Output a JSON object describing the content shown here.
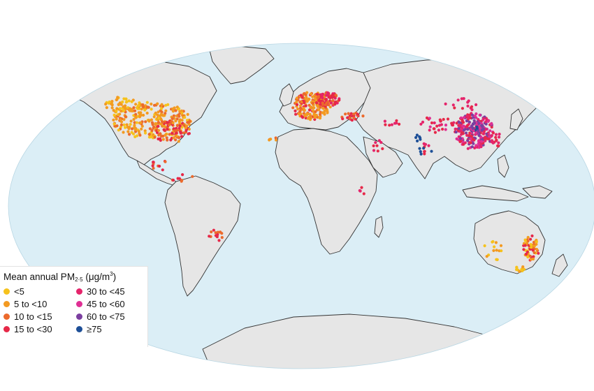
{
  "legend": {
    "title_main": "Mean annual PM",
    "title_sub": "2·5",
    "title_unit_open": " (μg/m",
    "title_unit_sup": "3",
    "title_unit_close": ")",
    "items": [
      {
        "label": "<5",
        "color": "#f6c21c"
      },
      {
        "label": "30 to <45",
        "color": "#e5246b"
      },
      {
        "label": "5 to <10",
        "color": "#f39a21"
      },
      {
        "label": "45 to <60",
        "color": "#df2f94"
      },
      {
        "label": "10 to <15",
        "color": "#ec6a2c"
      },
      {
        "label": "60 to <75",
        "color": "#7b3fa0"
      },
      {
        "label": "15 to <30",
        "color": "#e62848"
      },
      {
        "label": "≥75",
        "color": "#1d4f97"
      }
    ]
  },
  "colors": {
    "ocean": "#dbeef6",
    "land": "#e6e6e6",
    "border": "#333333"
  }
}
